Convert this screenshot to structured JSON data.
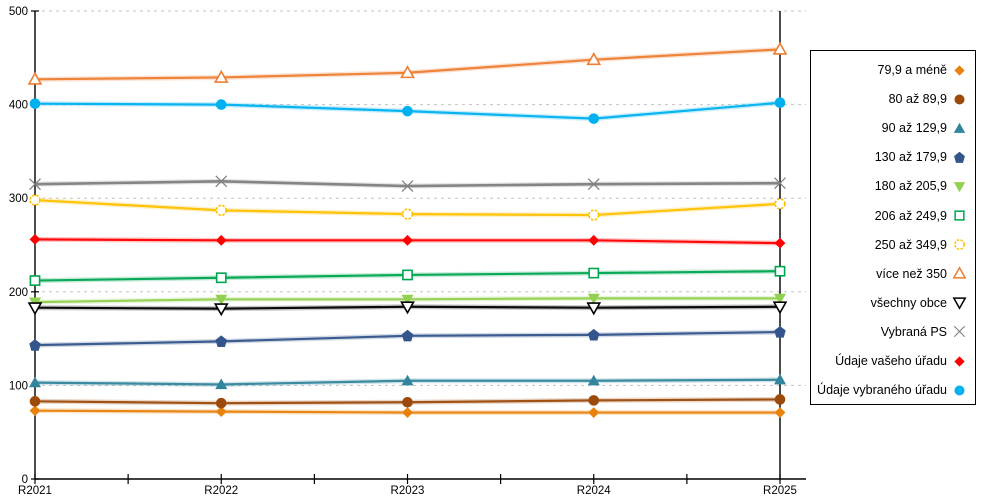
{
  "chart_data": {
    "type": "line",
    "title": "",
    "xlabel": "",
    "ylabel": "",
    "categories": [
      "R2021",
      "R2022",
      "R2023",
      "R2024",
      "R2025"
    ],
    "y_axis": {
      "min": 0,
      "max": 500,
      "step": 100,
      "tick_labels": [
        "0",
        "100",
        "200",
        "300",
        "400",
        "500"
      ]
    },
    "grid": "horizontal-dashed",
    "grid_color": "#c3c3c3",
    "axis_color": "#000000",
    "legend_position": "right-box",
    "series": [
      {
        "name": "79,9 a méně",
        "marker": "diamond-filled",
        "color": "#E8820C",
        "values": [
          73,
          72,
          71,
          71,
          71
        ]
      },
      {
        "name": "80 až 89,9",
        "marker": "circle-filled",
        "color": "#9C4A0B",
        "values": [
          83,
          81,
          82,
          84,
          85
        ]
      },
      {
        "name": "90 až 129,9",
        "marker": "triangle-up-filled",
        "color": "#31859C",
        "values": [
          103,
          101,
          105,
          105,
          106
        ]
      },
      {
        "name": "130 až 179,9",
        "marker": "pentagon-filled",
        "color": "#34558B",
        "values": [
          143,
          147,
          153,
          154,
          157
        ]
      },
      {
        "name": "180 až 205,9",
        "marker": "triangle-down-filled",
        "color": "#92D050",
        "values": [
          189,
          192,
          192,
          193,
          193
        ]
      },
      {
        "name": "206 až 249,9",
        "marker": "square-hollow",
        "color": "#00A550",
        "values": [
          212,
          215,
          218,
          220,
          222
        ]
      },
      {
        "name": "250 až 349,9",
        "marker": "circle-hollow",
        "color": "#FFC000",
        "values": [
          298,
          287,
          283,
          282,
          294
        ]
      },
      {
        "name": "více než 350",
        "marker": "triangle-up-hollow",
        "color": "#ED7D31",
        "values": [
          427,
          429,
          434,
          448,
          459
        ]
      },
      {
        "name": "všechny obce",
        "marker": "triangle-down-hollow",
        "color": "#000000",
        "values": [
          183,
          182,
          184,
          183,
          184
        ]
      },
      {
        "name": "Vybraná PS",
        "marker": "x-cross",
        "color": "#808080",
        "values": [
          315,
          318,
          313,
          315,
          316
        ]
      },
      {
        "name": "Údaje vašeho úřadu",
        "marker": "diamond-filled",
        "color": "#FF0000",
        "values": [
          256,
          255,
          255,
          255,
          252
        ]
      },
      {
        "name": "Údaje vybraného úřadu",
        "marker": "circle-filled",
        "color": "#00B0F0",
        "values": [
          401,
          400,
          393,
          385,
          402
        ]
      }
    ]
  }
}
